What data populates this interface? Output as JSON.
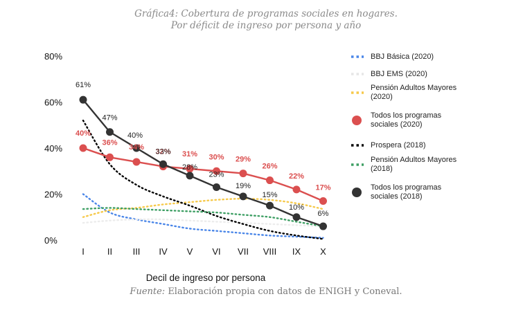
{
  "header": {
    "title_prefix": "Gráfica4:",
    "title_line1_rest": " Cobertura de programas sociales en hogares.",
    "title_line2": "Por déficit de ingreso por persona y año"
  },
  "footer": {
    "source_label": "Fuente:",
    "source_text": " Elaboración propia con datos de ENIGH y Coneval."
  },
  "chart_data": {
    "type": "line",
    "xlabel": "Decil de ingreso por persona",
    "ylabel": "",
    "categories": [
      "I",
      "II",
      "III",
      "IV",
      "V",
      "VI",
      "VII",
      "VIII",
      "IX",
      "X"
    ],
    "ylim": [
      0,
      80
    ],
    "yticks": [
      0,
      20,
      40,
      60,
      80
    ],
    "ytick_labels": [
      "0%",
      "20%",
      "40%",
      "60%",
      "80%"
    ],
    "grid": false,
    "legend_position": "right",
    "series": [
      {
        "name": "BBJ Básica (2020)",
        "style": "dotted",
        "color": "#4a86e8",
        "values": [
          20,
          12,
          9,
          7,
          5,
          4,
          3,
          2,
          1.5,
          1
        ]
      },
      {
        "name": "BBJ EMS (2020)",
        "style": "dotted",
        "color": "#ececec",
        "values": [
          7.5,
          8.5,
          9,
          9,
          8.5,
          8,
          7.5,
          7,
          6.5,
          6
        ]
      },
      {
        "name": "Pensión Adultos Mayores (2020)",
        "style": "dotted",
        "color": "#f6c94a",
        "values": [
          10,
          13,
          14,
          15.5,
          16.5,
          17.5,
          18,
          17.5,
          16,
          13.5
        ]
      },
      {
        "name": "Todos los programas sociales (2020)",
        "style": "solid-markers",
        "color": "#db4f4f",
        "values": [
          40,
          36,
          34,
          32,
          31,
          30,
          29,
          26,
          22,
          17
        ],
        "labels": [
          "40%",
          "36%",
          "34%",
          "32%",
          "31%",
          "30%",
          "29%",
          "26%",
          "22%",
          "17%"
        ]
      },
      {
        "name": "Prospera (2018)",
        "style": "dotted",
        "color": "#000000",
        "values": [
          52,
          33,
          24,
          19,
          15,
          10.5,
          7,
          4,
          2,
          0.5
        ]
      },
      {
        "name": "Pensión Adultos Mayores (2018)",
        "style": "dotted",
        "color": "#3e9f64",
        "values": [
          13.5,
          14,
          13.5,
          13,
          12.5,
          12,
          11,
          10,
          8,
          6
        ]
      },
      {
        "name": "Todos los programas sociales (2018)",
        "style": "solid-markers",
        "color": "#333333",
        "values": [
          61,
          47,
          40,
          33,
          28,
          23,
          19,
          15,
          10,
          6
        ],
        "labels": [
          "61%",
          "47%",
          "40%",
          "33%",
          "28%",
          "23%",
          "19%",
          "15%",
          "10%",
          "6%"
        ]
      }
    ]
  }
}
